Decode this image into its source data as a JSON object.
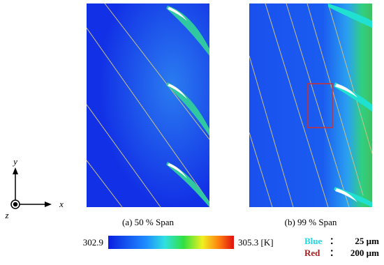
{
  "axes_indicator": {
    "y": "y",
    "x": "x",
    "z": "z"
  },
  "panels": [
    {
      "caption": "(a) 50 % Span"
    },
    {
      "caption": "(b) 99 % Span"
    }
  ],
  "colorbar": {
    "min_label": "302.9",
    "max_label": "305.3 [K]"
  },
  "legend": [
    {
      "name": "Blue",
      "sep": "：",
      "value": "25 µm"
    },
    {
      "name": "Red",
      "sep": "：",
      "value": "200 µm"
    }
  ]
}
